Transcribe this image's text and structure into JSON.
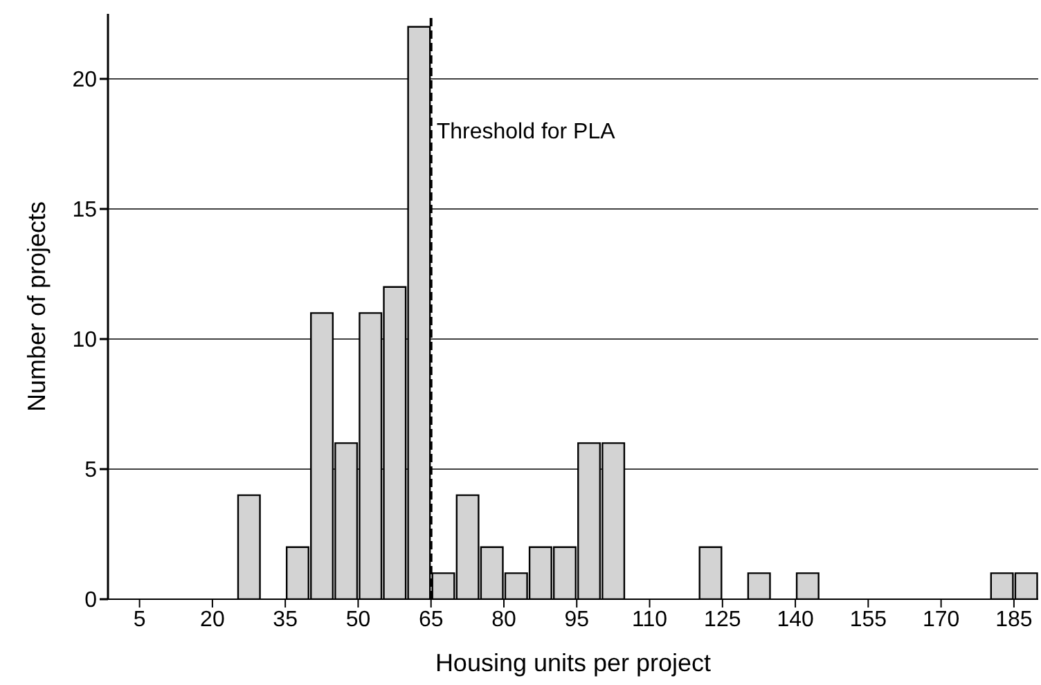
{
  "chart_data": {
    "type": "histogram",
    "xlabel": "Housing units per project",
    "ylabel": "Number of projects",
    "bins": [
      25,
      30,
      35,
      40,
      45,
      50,
      55,
      60,
      65,
      70,
      75,
      80,
      85,
      90,
      95,
      100,
      105,
      110,
      115,
      120,
      125,
      130,
      135,
      140,
      145,
      150,
      155,
      160,
      165,
      170,
      175,
      180,
      185,
      190
    ],
    "values": [
      4,
      0,
      2,
      11,
      6,
      11,
      12,
      22,
      1,
      4,
      2,
      1,
      2,
      2,
      6,
      6,
      0,
      0,
      0,
      2,
      0,
      1,
      0,
      1,
      0,
      0,
      0,
      0,
      0,
      0,
      0,
      1,
      1
    ],
    "color": "#d3d3d3",
    "xlim": [
      -1.5,
      190
    ],
    "xticks": [
      5,
      20,
      35,
      50,
      65,
      80,
      95,
      110,
      125,
      140,
      155,
      170,
      185
    ],
    "ylim": [
      0,
      22.5
    ],
    "yticks": [
      0,
      5,
      10,
      15,
      20
    ],
    "grid": "y",
    "legend": false,
    "ref_lines": [
      {
        "axis": "x",
        "value": 65,
        "label": "Threshold for PLA",
        "color": "#000000",
        "line_style": "dashed"
      }
    ]
  }
}
